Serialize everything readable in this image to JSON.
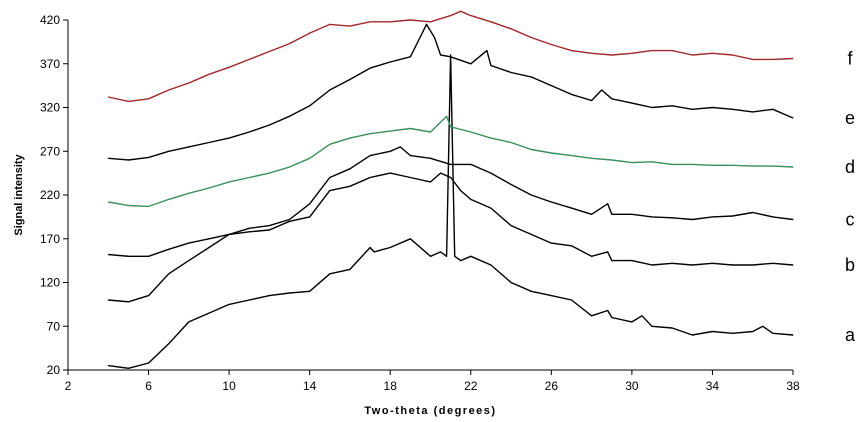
{
  "chart_data": {
    "type": "line",
    "title": "",
    "xlabel": "Two-theta (degrees)",
    "ylabel": "Signal intensity",
    "xlim": [
      2,
      38
    ],
    "ylim": [
      20,
      420
    ],
    "x_ticks": [
      2,
      6,
      10,
      14,
      18,
      22,
      26,
      30,
      34,
      38
    ],
    "y_ticks": [
      20,
      70,
      120,
      170,
      220,
      270,
      320,
      370,
      420
    ],
    "grid": false,
    "legend": "none",
    "series": [
      {
        "name": "a",
        "color": "#000000",
        "x": [
          4,
          5,
          6,
          7,
          8,
          9,
          10,
          11,
          12,
          13,
          14,
          15,
          16,
          17,
          17.2,
          18,
          19,
          20,
          20.5,
          20.8,
          21.0,
          21.2,
          21.5,
          22,
          23,
          24,
          25,
          26,
          27,
          28,
          28.8,
          29,
          30,
          30.5,
          31,
          32,
          33,
          34,
          35,
          36,
          36.5,
          37,
          38
        ],
        "y": [
          25,
          22,
          28,
          50,
          75,
          85,
          95,
          100,
          105,
          108,
          110,
          130,
          135,
          160,
          155,
          160,
          170,
          150,
          155,
          150,
          380,
          150,
          145,
          150,
          140,
          120,
          110,
          105,
          100,
          82,
          88,
          80,
          75,
          82,
          70,
          68,
          60,
          64,
          62,
          64,
          70,
          62,
          60
        ]
      },
      {
        "name": "b",
        "color": "#000000",
        "x": [
          4,
          5,
          6,
          7,
          8,
          9,
          10,
          11,
          12,
          13,
          14,
          15,
          16,
          17,
          18,
          19,
          20,
          20.5,
          21,
          21.5,
          22,
          23,
          24,
          25,
          26,
          27,
          28,
          28.8,
          29,
          30,
          31,
          32,
          33,
          34,
          35,
          36,
          37,
          38
        ],
        "y": [
          100,
          98,
          105,
          130,
          145,
          160,
          175,
          178,
          180,
          190,
          195,
          225,
          230,
          240,
          245,
          240,
          235,
          245,
          240,
          225,
          215,
          205,
          185,
          175,
          165,
          162,
          150,
          155,
          145,
          145,
          140,
          142,
          140,
          142,
          140,
          140,
          142,
          140
        ]
      },
      {
        "name": "c",
        "color": "#000000",
        "x": [
          4,
          5,
          6,
          7,
          8,
          9,
          10,
          11,
          12,
          13,
          14,
          15,
          16,
          17,
          18,
          18.5,
          19,
          20,
          21,
          22,
          23,
          24,
          25,
          26,
          27,
          28,
          28.8,
          29,
          30,
          31,
          32,
          33,
          34,
          35,
          36,
          37,
          38
        ],
        "y": [
          152,
          150,
          150,
          158,
          165,
          170,
          175,
          182,
          185,
          192,
          210,
          240,
          250,
          265,
          270,
          275,
          265,
          262,
          255,
          255,
          245,
          232,
          220,
          212,
          205,
          198,
          210,
          198,
          198,
          195,
          194,
          192,
          195,
          196,
          200,
          195,
          192
        ]
      },
      {
        "name": "d",
        "color": "#3a8f5c",
        "x": [
          4,
          5,
          6,
          7,
          8,
          9,
          10,
          11,
          12,
          13,
          14,
          15,
          16,
          17,
          18,
          19,
          20,
          20.8,
          21,
          22,
          23,
          24,
          25,
          26,
          27,
          28,
          29,
          30,
          31,
          32,
          33,
          34,
          35,
          36,
          37,
          38
        ],
        "y": [
          212,
          208,
          207,
          215,
          222,
          228,
          235,
          240,
          245,
          252,
          262,
          278,
          285,
          290,
          293,
          296,
          292,
          310,
          298,
          292,
          285,
          280,
          272,
          268,
          265,
          262,
          260,
          257,
          258,
          255,
          255,
          254,
          254,
          253,
          253,
          252
        ]
      },
      {
        "name": "e",
        "color": "#000000",
        "x": [
          4,
          5,
          6,
          7,
          8,
          9,
          10,
          11,
          12,
          13,
          14,
          15,
          16,
          17,
          18,
          19,
          19.8,
          20.2,
          20.5,
          21,
          22,
          22.8,
          23,
          24,
          25,
          26,
          27,
          28,
          28.5,
          29,
          30,
          31,
          32,
          33,
          34,
          35,
          36,
          37,
          38
        ],
        "y": [
          262,
          260,
          263,
          270,
          275,
          280,
          285,
          292,
          300,
          310,
          322,
          340,
          352,
          365,
          372,
          378,
          415,
          400,
          380,
          378,
          370,
          385,
          368,
          360,
          355,
          345,
          335,
          328,
          340,
          330,
          325,
          320,
          322,
          318,
          320,
          318,
          315,
          318,
          308
        ]
      },
      {
        "name": "f",
        "color": "#a02828",
        "x": [
          4,
          5,
          6,
          7,
          8,
          9,
          10,
          11,
          12,
          13,
          14,
          15,
          16,
          17,
          18,
          19,
          20,
          21,
          21.5,
          22,
          23,
          24,
          25,
          26,
          27,
          28,
          29,
          30,
          31,
          32,
          33,
          34,
          35,
          36,
          37,
          38
        ],
        "y": [
          332,
          327,
          330,
          340,
          348,
          358,
          366,
          375,
          384,
          393,
          405,
          415,
          413,
          418,
          418,
          420,
          418,
          425,
          430,
          425,
          418,
          410,
          400,
          392,
          385,
          382,
          380,
          382,
          385,
          385,
          380,
          382,
          380,
          375,
          375,
          376
        ]
      }
    ]
  }
}
